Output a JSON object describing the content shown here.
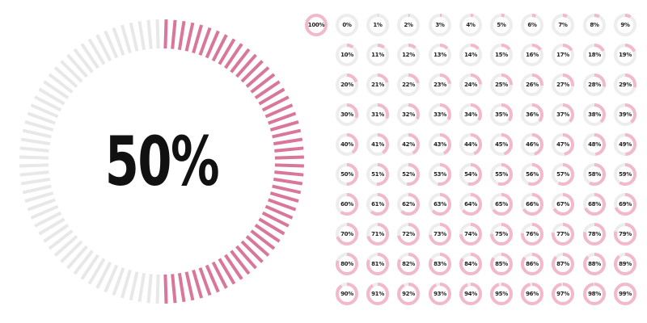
{
  "main_indicator": {
    "label": "50%",
    "value": 50
  },
  "indicators": [
    {
      "label": "100%",
      "value": 100
    },
    {
      "label": "0%",
      "value": 0
    },
    {
      "label": "1%",
      "value": 1
    },
    {
      "label": "2%",
      "value": 2
    },
    {
      "label": "3%",
      "value": 3
    },
    {
      "label": "4%",
      "value": 4
    },
    {
      "label": "5%",
      "value": 5
    },
    {
      "label": "6%",
      "value": 6
    },
    {
      "label": "7%",
      "value": 7
    },
    {
      "label": "8%",
      "value": 8
    },
    {
      "label": "9%",
      "value": 9
    },
    {
      "label": "10%",
      "value": 10
    },
    {
      "label": "11%",
      "value": 11
    },
    {
      "label": "12%",
      "value": 12
    },
    {
      "label": "13%",
      "value": 13
    },
    {
      "label": "14%",
      "value": 14
    },
    {
      "label": "15%",
      "value": 15
    },
    {
      "label": "16%",
      "value": 16
    },
    {
      "label": "17%",
      "value": 17
    },
    {
      "label": "18%",
      "value": 18
    },
    {
      "label": "19%",
      "value": 19
    },
    {
      "label": "20%",
      "value": 20
    },
    {
      "label": "21%",
      "value": 21
    },
    {
      "label": "22%",
      "value": 22
    },
    {
      "label": "23%",
      "value": 23
    },
    {
      "label": "24%",
      "value": 24
    },
    {
      "label": "25%",
      "value": 25
    },
    {
      "label": "26%",
      "value": 26
    },
    {
      "label": "27%",
      "value": 27
    },
    {
      "label": "28%",
      "value": 28
    },
    {
      "label": "29%",
      "value": 29
    },
    {
      "label": "30%",
      "value": 30
    },
    {
      "label": "31%",
      "value": 31
    },
    {
      "label": "32%",
      "value": 32
    },
    {
      "label": "33%",
      "value": 33
    },
    {
      "label": "34%",
      "value": 34
    },
    {
      "label": "35%",
      "value": 35
    },
    {
      "label": "36%",
      "value": 36
    },
    {
      "label": "37%",
      "value": 37
    },
    {
      "label": "38%",
      "value": 38
    },
    {
      "label": "39%",
      "value": 39
    },
    {
      "label": "40%",
      "value": 40
    },
    {
      "label": "41%",
      "value": 41
    },
    {
      "label": "42%",
      "value": 42
    },
    {
      "label": "43%",
      "value": 43
    },
    {
      "label": "44%",
      "value": 44
    },
    {
      "label": "45%",
      "value": 45
    },
    {
      "label": "46%",
      "value": 46
    },
    {
      "label": "47%",
      "value": 47
    },
    {
      "label": "48%",
      "value": 48
    },
    {
      "label": "49%",
      "value": 49
    },
    {
      "label": "50%",
      "value": 50
    },
    {
      "label": "51%",
      "value": 51
    },
    {
      "label": "52%",
      "value": 52
    },
    {
      "label": "53%",
      "value": 53
    },
    {
      "label": "54%",
      "value": 54
    },
    {
      "label": "55%",
      "value": 55
    },
    {
      "label": "56%",
      "value": 56
    },
    {
      "label": "57%",
      "value": 57
    },
    {
      "label": "58%",
      "value": 58
    },
    {
      "label": "59%",
      "value": 59
    },
    {
      "label": "60%",
      "value": 60
    },
    {
      "label": "61%",
      "value": 61
    },
    {
      "label": "62%",
      "value": 62
    },
    {
      "label": "63%",
      "value": 63
    },
    {
      "label": "64%",
      "value": 64
    },
    {
      "label": "65%",
      "value": 65
    },
    {
      "label": "66%",
      "value": 66
    },
    {
      "label": "67%",
      "value": 67
    },
    {
      "label": "68%",
      "value": 68
    },
    {
      "label": "69%",
      "value": 69
    },
    {
      "label": "70%",
      "value": 70
    },
    {
      "label": "71%",
      "value": 71
    },
    {
      "label": "72%",
      "value": 72
    },
    {
      "label": "73%",
      "value": 73
    },
    {
      "label": "74%",
      "value": 74
    },
    {
      "label": "75%",
      "value": 75
    },
    {
      "label": "76%",
      "value": 76
    },
    {
      "label": "77%",
      "value": 77
    },
    {
      "label": "78%",
      "value": 78
    },
    {
      "label": "79%",
      "value": 79
    },
    {
      "label": "80%",
      "value": 80
    },
    {
      "label": "81%",
      "value": 81
    },
    {
      "label": "82%",
      "value": 82
    },
    {
      "label": "83%",
      "value": 83
    },
    {
      "label": "84%",
      "value": 84
    },
    {
      "label": "85%",
      "value": 85
    },
    {
      "label": "86%",
      "value": 86
    },
    {
      "label": "87%",
      "value": 87
    },
    {
      "label": "88%",
      "value": 88
    },
    {
      "label": "89%",
      "value": 89
    },
    {
      "label": "90%",
      "value": 90
    },
    {
      "label": "91%",
      "value": 91
    },
    {
      "label": "92%",
      "value": 92
    },
    {
      "label": "93%",
      "value": 93
    },
    {
      "label": "94%",
      "value": 94
    },
    {
      "label": "95%",
      "value": 95
    },
    {
      "label": "96%",
      "value": 96
    },
    {
      "label": "97%",
      "value": 97
    },
    {
      "label": "98%",
      "value": 98
    },
    {
      "label": "99%",
      "value": 99
    }
  ],
  "colors": {
    "filled": "#d9779b",
    "empty": "#e8e8e8",
    "mini_filled": "#f2b8cc",
    "mini_empty": "#ededed",
    "text": "#111111"
  }
}
